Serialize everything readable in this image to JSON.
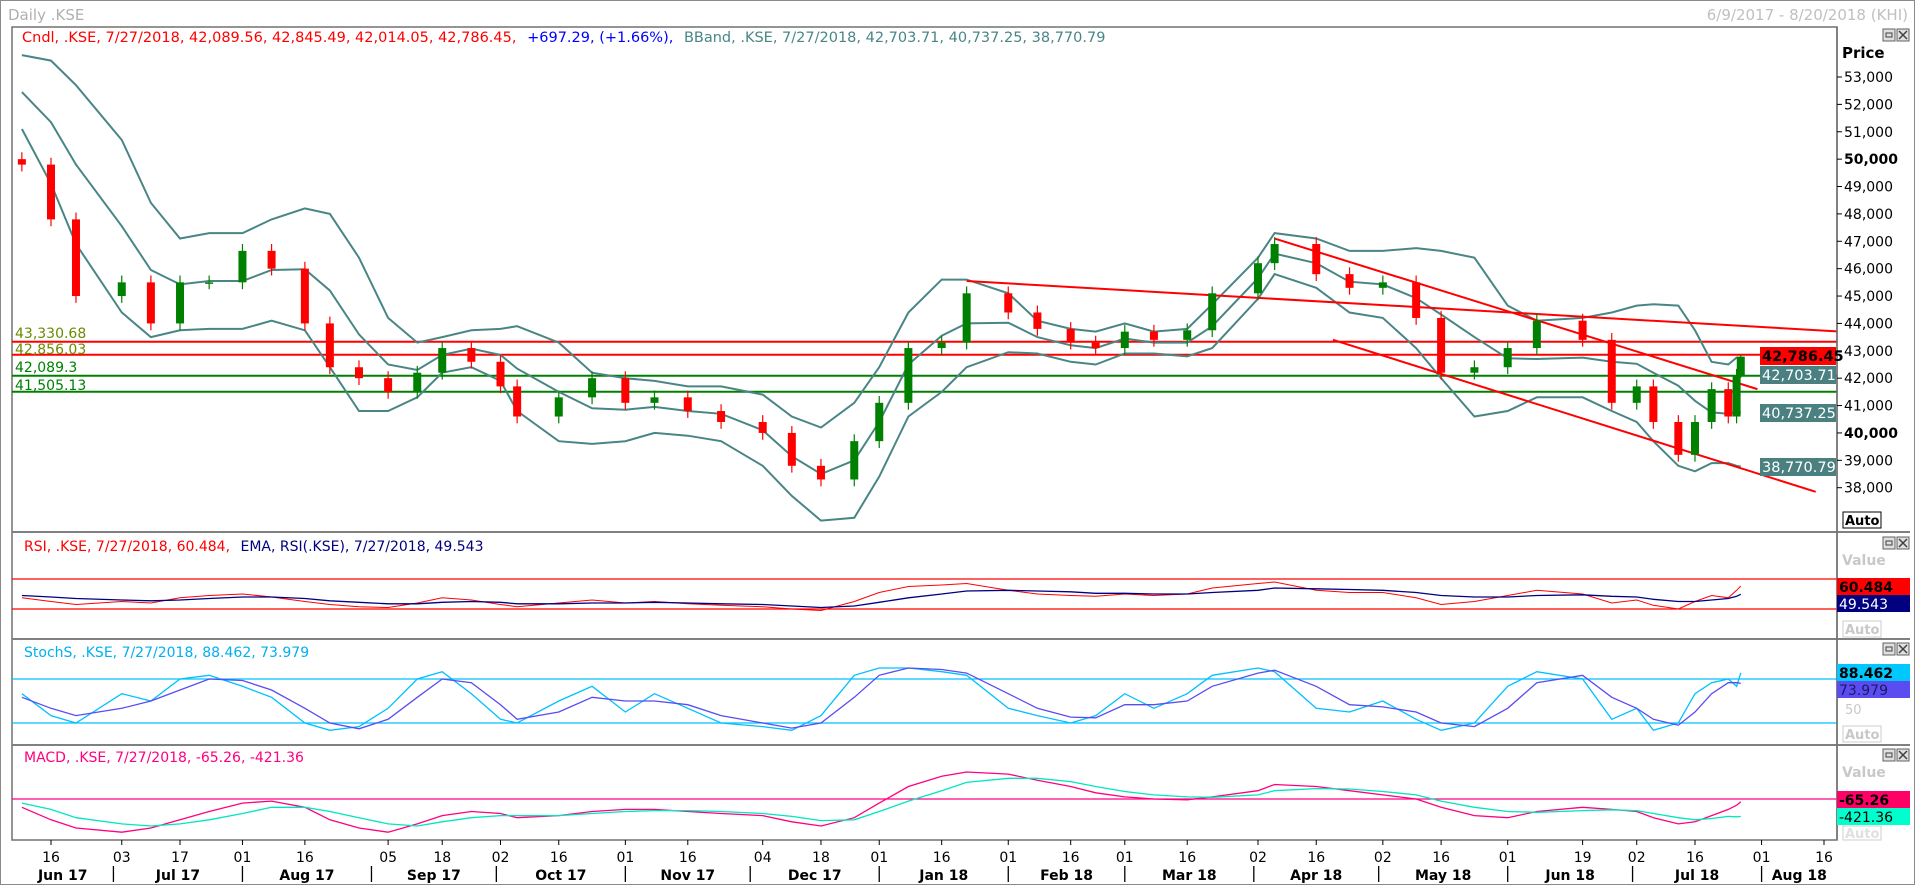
{
  "window": {
    "title": "Daily .KSE",
    "date_range": "6/9/2017 - 8/20/2018 (KHI)"
  },
  "main_panel": {
    "legend_cndl": "Cndl, .KSE, 7/27/2018, 42,089.56, 42,845.49, 42,014.05, 42,786.45,",
    "legend_change": "+697.29, (+1.66%),",
    "legend_bband": "BBand, .KSE, 7/27/2018, 42,703.71, 40,737.25, 38,770.79",
    "axis_title": "Price",
    "auto_label": "Auto",
    "tick_labels": [
      "53,000",
      "52,000",
      "51,000",
      "50,000",
      "49,000",
      "48,000",
      "47,000",
      "46,000",
      "45,000",
      "44,000",
      "43,000",
      "42,000",
      "41,000",
      "40,000",
      "39,000",
      "38,000"
    ],
    "value_boxes": {
      "close": "42,786.45",
      "bb_upper": "42,703.71",
      "bb_mid": "40,737.25",
      "bb_lower": "38,770.79"
    },
    "level_labels": {
      "r1": "43,330.68",
      "r2": "42,856.03",
      "s1": "42,089.3",
      "s2": "41,505.13"
    }
  },
  "rsi_panel": {
    "legend_rsi": "RSI, .KSE, 7/27/2018, 60.484,",
    "legend_ema": "EMA, RSI(.KSE), 7/27/2018, 49.543",
    "axis_title": "Value",
    "value_rsi": "60.484",
    "value_ema": "49.543",
    "auto_label": "Auto"
  },
  "stoch_panel": {
    "legend": "StochS, .KSE, 7/27/2018, 88.462, 73.979",
    "value_k": "88.462",
    "value_d": "73.979",
    "tick_50": "50",
    "auto_label": "Auto"
  },
  "macd_panel": {
    "legend": "MACD, .KSE, 7/27/2018, -65.26, -421.36",
    "axis_title": "Value",
    "value_macd": "-65.26",
    "value_signal": "-421.36",
    "auto_label": "Auto"
  },
  "x_axis": {
    "day_ticks": [
      [
        "2017-06-16",
        "16"
      ],
      [
        "2017-07-03",
        "03"
      ],
      [
        "2017-07-17",
        "17"
      ],
      [
        "2017-08-01",
        "01"
      ],
      [
        "2017-08-16",
        "16"
      ],
      [
        "2017-09-05",
        "05"
      ],
      [
        "2017-09-18",
        "18"
      ],
      [
        "2017-10-02",
        "02"
      ],
      [
        "2017-10-16",
        "16"
      ],
      [
        "2017-11-01",
        "01"
      ],
      [
        "2017-11-16",
        "16"
      ],
      [
        "2017-12-04",
        "04"
      ],
      [
        "2017-12-18",
        "18"
      ],
      [
        "2018-01-01",
        "01"
      ],
      [
        "2018-01-16",
        "16"
      ],
      [
        "2018-02-01",
        "01"
      ],
      [
        "2018-02-16",
        "16"
      ],
      [
        "2018-03-01",
        "01"
      ],
      [
        "2018-03-16",
        "16"
      ],
      [
        "2018-04-02",
        "02"
      ],
      [
        "2018-04-16",
        "16"
      ],
      [
        "2018-05-02",
        "02"
      ],
      [
        "2018-05-16",
        "16"
      ],
      [
        "2018-06-01",
        "01"
      ],
      [
        "2018-06-19",
        "19"
      ],
      [
        "2018-07-02",
        "02"
      ],
      [
        "2018-07-16",
        "16"
      ],
      [
        "2018-08-01",
        "01"
      ],
      [
        "2018-08-16",
        "16"
      ]
    ],
    "months": [
      [
        "2017-06-01",
        "Jun 17"
      ],
      [
        "2017-07-01",
        "Jul 17"
      ],
      [
        "2017-08-01",
        "Aug 17"
      ],
      [
        "2017-09-01",
        "Sep 17"
      ],
      [
        "2017-10-01",
        "Oct 17"
      ],
      [
        "2017-11-01",
        "Nov 17"
      ],
      [
        "2017-12-01",
        "Dec 17"
      ],
      [
        "2018-01-01",
        "Jan 18"
      ],
      [
        "2018-02-01",
        "Feb 18"
      ],
      [
        "2018-03-01",
        "Mar 18"
      ],
      [
        "2018-04-01",
        "Apr 18"
      ],
      [
        "2018-05-01",
        "May 18"
      ],
      [
        "2018-06-01",
        "Jun 18"
      ],
      [
        "2018-07-01",
        "Jul 18"
      ],
      [
        "2018-08-01",
        "Aug 18"
      ]
    ]
  },
  "colors": {
    "up": "#008000",
    "down": "#ff0000",
    "band": "#4a8585",
    "rsi": "#ff0000",
    "ema": "#000080",
    "stoch_k": "#00c0ff",
    "stoch_d": "#5a4cf0",
    "macd": "#ff0080",
    "signal": "#00e6c0",
    "resistance": "#ff0000",
    "support": "#008000"
  },
  "chart_data": {
    "type": "candlestick",
    "symbol": ".KSE",
    "period": "Daily",
    "ylim": [
      37000,
      54000
    ],
    "dates": [
      "2017-06-09",
      "2017-06-16",
      "2017-06-22",
      "2017-07-03",
      "2017-07-10",
      "2017-07-17",
      "2017-07-24",
      "2017-08-01",
      "2017-08-08",
      "2017-08-16",
      "2017-08-22",
      "2017-08-29",
      "2017-09-05",
      "2017-09-12",
      "2017-09-18",
      "2017-09-25",
      "2017-10-02",
      "2017-10-06",
      "2017-10-16",
      "2017-10-24",
      "2017-11-01",
      "2017-11-08",
      "2017-11-16",
      "2017-11-24",
      "2017-12-04",
      "2017-12-11",
      "2017-12-18",
      "2017-12-26",
      "2018-01-01",
      "2018-01-08",
      "2018-01-16",
      "2018-01-22",
      "2018-02-01",
      "2018-02-08",
      "2018-02-16",
      "2018-02-22",
      "2018-03-01",
      "2018-03-08",
      "2018-03-16",
      "2018-03-22",
      "2018-04-02",
      "2018-04-06",
      "2018-04-16",
      "2018-04-24",
      "2018-05-02",
      "2018-05-10",
      "2018-05-16",
      "2018-05-24",
      "2018-06-01",
      "2018-06-08",
      "2018-06-19",
      "2018-06-26",
      "2018-07-02",
      "2018-07-06",
      "2018-07-12",
      "2018-07-16",
      "2018-07-20",
      "2018-07-24",
      "2018-07-26",
      "2018-07-27"
    ],
    "close": [
      49800,
      47800,
      45000,
      45500,
      44000,
      45500,
      45500,
      46650,
      46000,
      44000,
      42400,
      42000,
      41500,
      42200,
      43100,
      42600,
      41700,
      40600,
      41300,
      42000,
      41100,
      41300,
      40800,
      40400,
      40000,
      38800,
      38300,
      39700,
      41100,
      43100,
      43300,
      45100,
      44400,
      43800,
      43300,
      43100,
      43700,
      43400,
      43750,
      45100,
      46200,
      46900,
      45800,
      45300,
      45500,
      44200,
      42200,
      42400,
      43100,
      44100,
      43400,
      41100,
      41700,
      40400,
      39200,
      40400,
      41600,
      40600,
      42089.56,
      42786.45
    ],
    "last_candle": {
      "date": "7/27/2018",
      "open": 42089.56,
      "high": 42845.49,
      "low": 42014.05,
      "close": 42786.45,
      "change": 697.29,
      "change_pct": 1.66
    },
    "bband_upper": [
      53800,
      53600,
      52700,
      50700,
      48400,
      47100,
      47300,
      47300,
      47800,
      48200,
      48000,
      46400,
      44200,
      43300,
      43500,
      43750,
      43800,
      43900,
      43300,
      42200,
      42000,
      41900,
      41700,
      41700,
      41400,
      40600,
      40200,
      41100,
      42400,
      44400,
      45600,
      45600,
      45100,
      44100,
      43800,
      43700,
      44000,
      43700,
      43800,
      44700,
      46400,
      47300,
      47100,
      46650,
      46650,
      46750,
      46650,
      46400,
      44650,
      44100,
      44200,
      44400,
      44650,
      44700,
      44650,
      43750,
      42600,
      42500,
      42750,
      42703.71
    ],
    "bband_lower": [
      51100,
      49100,
      46900,
      44400,
      43500,
      43750,
      43800,
      43800,
      44100,
      43750,
      42400,
      40800,
      40800,
      41300,
      42200,
      42400,
      41900,
      40800,
      39700,
      39600,
      39700,
      40000,
      39900,
      39700,
      38800,
      37700,
      36800,
      36900,
      38400,
      40600,
      41500,
      42400,
      42950,
      42900,
      42600,
      42500,
      42900,
      42900,
      42800,
      43100,
      44900,
      45800,
      45300,
      44400,
      44200,
      43100,
      42000,
      40600,
      40800,
      41300,
      41300,
      40800,
      40400,
      39700,
      38800,
      38600,
      38900,
      38900,
      38800,
      38770.79
    ],
    "levels": [
      {
        "value": 43330.68,
        "color": "red"
      },
      {
        "value": 42856.03,
        "color": "red"
      },
      {
        "value": 42089.3,
        "color": "green"
      },
      {
        "value": 41505.13,
        "color": "green"
      }
    ],
    "trendlines": [
      {
        "from": [
          "2018-01-22",
          45550
        ],
        "to": [
          "2018-08-20",
          43700
        ]
      },
      {
        "from": [
          "2018-04-06",
          47100
        ],
        "to": [
          "2018-07-31",
          41600
        ]
      },
      {
        "from": [
          "2018-04-20",
          43400
        ],
        "to": [
          "2018-08-14",
          37850
        ]
      }
    ],
    "rsi": {
      "levels": [
        70,
        30
      ],
      "rsi": [
        45,
        40,
        36,
        40,
        38,
        45,
        48,
        50,
        46,
        40,
        36,
        33,
        32,
        38,
        45,
        42,
        36,
        33,
        38,
        42,
        38,
        40,
        37,
        35,
        33,
        30,
        28,
        40,
        52,
        60,
        62,
        64,
        55,
        50,
        48,
        47,
        50,
        48,
        50,
        58,
        64,
        66,
        55,
        52,
        52,
        45,
        36,
        40,
        48,
        55,
        50,
        38,
        42,
        35,
        30,
        40,
        48,
        45,
        55,
        60.484
      ],
      "ema": [
        48,
        46,
        44,
        42,
        41,
        42,
        44,
        46,
        46,
        44,
        41,
        39,
        37,
        37,
        39,
        40,
        39,
        37,
        37,
        38,
        38,
        39,
        38,
        37,
        36,
        34,
        32,
        34,
        39,
        45,
        50,
        54,
        55,
        54,
        53,
        51,
        51,
        50,
        50,
        52,
        55,
        58,
        57,
        56,
        55,
        52,
        48,
        46,
        46,
        48,
        49,
        47,
        46,
        43,
        40,
        40,
        42,
        44,
        47,
        49.543
      ]
    },
    "stoch": {
      "levels": [
        80,
        20
      ],
      "k": [
        60,
        30,
        20,
        60,
        50,
        80,
        85,
        70,
        55,
        20,
        10,
        15,
        40,
        80,
        90,
        60,
        25,
        20,
        50,
        70,
        35,
        60,
        40,
        20,
        15,
        10,
        30,
        85,
        95,
        95,
        90,
        85,
        40,
        30,
        20,
        30,
        60,
        40,
        60,
        85,
        95,
        90,
        40,
        35,
        50,
        25,
        10,
        20,
        70,
        90,
        80,
        25,
        40,
        10,
        20,
        60,
        75,
        80,
        70,
        88.462
      ],
      "d": [
        55,
        40,
        30,
        40,
        50,
        65,
        80,
        78,
        65,
        40,
        20,
        12,
        25,
        55,
        80,
        75,
        45,
        25,
        35,
        55,
        50,
        50,
        45,
        30,
        20,
        13,
        20,
        55,
        85,
        95,
        93,
        88,
        60,
        40,
        28,
        27,
        45,
        45,
        50,
        70,
        88,
        92,
        70,
        45,
        42,
        35,
        20,
        15,
        40,
        75,
        85,
        55,
        40,
        25,
        17,
        35,
        60,
        75,
        75,
        73.979
      ]
    },
    "macd": {
      "zero_line": 0,
      "macd": [
        -200,
        -500,
        -700,
        -800,
        -700,
        -500,
        -300,
        -100,
        -50,
        -200,
        -500,
        -700,
        -800,
        -600,
        -400,
        -300,
        -350,
        -450,
        -400,
        -300,
        -250,
        -250,
        -300,
        -350,
        -400,
        -550,
        -650,
        -450,
        -100,
        300,
        550,
        650,
        600,
        450,
        300,
        150,
        50,
        0,
        -20,
        50,
        200,
        350,
        300,
        200,
        100,
        0,
        -200,
        -400,
        -450,
        -300,
        -200,
        -250,
        -300,
        -450,
        -600,
        -550,
        -400,
        -250,
        -150,
        -65.26
      ],
      "signal": [
        -100,
        -250,
        -450,
        -600,
        -650,
        -600,
        -500,
        -350,
        -200,
        -200,
        -300,
        -450,
        -600,
        -650,
        -550,
        -450,
        -400,
        -400,
        -400,
        -350,
        -300,
        -280,
        -280,
        -300,
        -350,
        -420,
        -520,
        -500,
        -300,
        -50,
        200,
        400,
        500,
        500,
        420,
        300,
        180,
        100,
        50,
        40,
        100,
        200,
        250,
        240,
        180,
        100,
        -50,
        -200,
        -300,
        -320,
        -280,
        -260,
        -280,
        -350,
        -450,
        -500,
        -470,
        -420,
        -430,
        -421.36
      ]
    }
  }
}
